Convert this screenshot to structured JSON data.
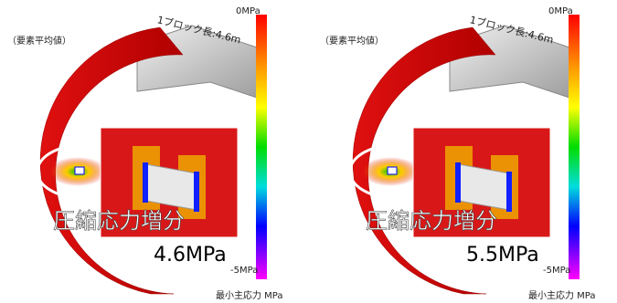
{
  "panels": [
    {
      "note": "（要素平均値）",
      "block_label": "1ブロック長:4.6m",
      "scale_top": "0MPa",
      "scale_bottom": "-5MPa",
      "scale_title": "最小主応力 MPa",
      "callout": "圧縮応力増分",
      "increment": "4.6MPa"
    },
    {
      "note": "（要素平均値）",
      "block_label": "1ブロック長:4.6m",
      "scale_top": "0MPa",
      "scale_bottom": "-5MPa",
      "scale_title": "最小主応力 MPa",
      "callout": "圧縮応力増分",
      "increment": "5.5MPa"
    }
  ]
}
